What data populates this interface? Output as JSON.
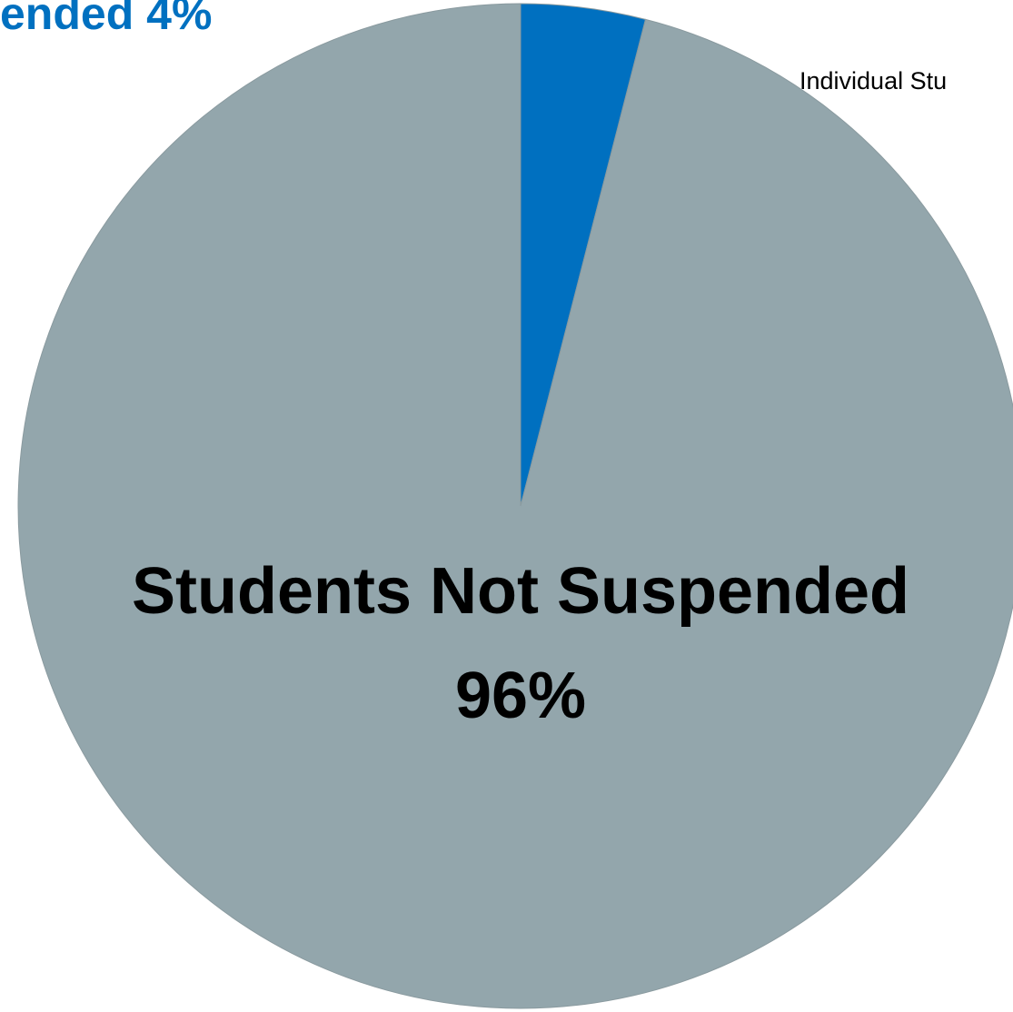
{
  "chart_data": {
    "type": "pie",
    "start_angle_deg": 0,
    "direction": "clockwise",
    "slices": [
      {
        "label": "Students Suspended",
        "value": 4,
        "percent_text": "4%",
        "visible_text": "ended 4%",
        "color": "#0070C0",
        "label_color": "#0070C0"
      },
      {
        "label": "Students Not Suspended",
        "value": 96,
        "percent_text": "96%",
        "visible_text": "Students Not Suspended",
        "color": "#93A6AC",
        "label_color": "#000000"
      }
    ],
    "annotations": [
      {
        "text": "Individual Stu"
      }
    ]
  },
  "colors": {
    "background": "#ffffff",
    "slice_border": "#8a9a9f"
  }
}
